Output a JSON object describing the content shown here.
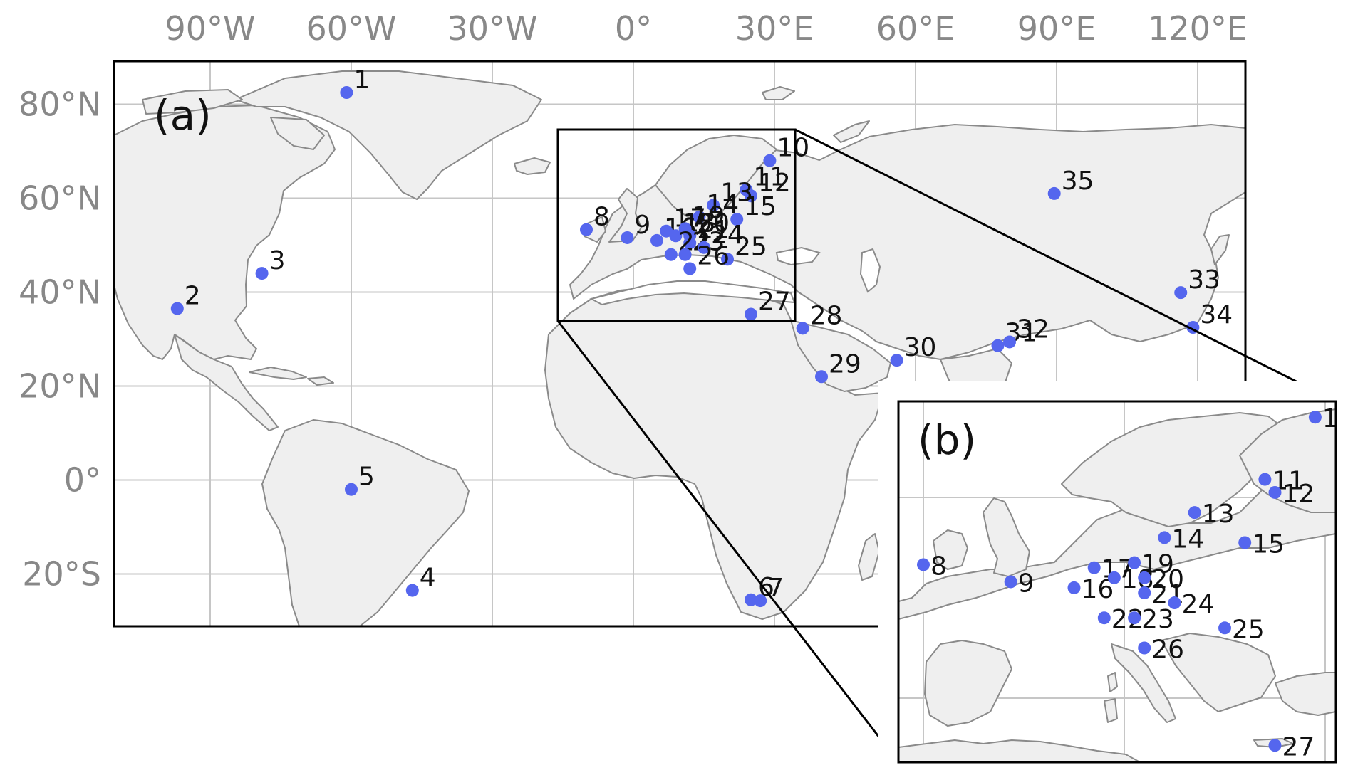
{
  "panel_a_label": "(a)",
  "panel_b_label": "(b)",
  "lon_labels": [
    "90°W",
    "60°W",
    "30°W",
    "0°",
    "30°E",
    "60°E",
    "90°E",
    "120°E"
  ],
  "lat_labels": [
    "80°N",
    "60°N",
    "40°N",
    "20°N",
    "0°",
    "20°S"
  ],
  "colors": {
    "marker": "#5566ee",
    "land": "#efefef",
    "coast": "#8a8a8a",
    "grid": "#c6c6c6"
  },
  "sites_main": [
    {
      "id": "1",
      "lon": -61,
      "lat": 82.5
    },
    {
      "id": "2",
      "lon": -97,
      "lat": 36.5
    },
    {
      "id": "3",
      "lon": -79,
      "lat": 44
    },
    {
      "id": "4",
      "lon": -47,
      "lat": -23.5
    },
    {
      "id": "5",
      "lon": -60,
      "lat": -2
    },
    {
      "id": "6",
      "lon": 25,
      "lat": -25.5
    },
    {
      "id": "7",
      "lon": 27,
      "lat": -25.7
    },
    {
      "id": "8",
      "lon": -10,
      "lat": 53.3
    },
    {
      "id": "9",
      "lon": -1.3,
      "lat": 51.6
    },
    {
      "id": "10",
      "lon": 29,
      "lat": 68
    },
    {
      "id": "11",
      "lon": 24,
      "lat": 61.8
    },
    {
      "id": "12",
      "lon": 25,
      "lat": 60.5
    },
    {
      "id": "13",
      "lon": 17,
      "lat": 58.5
    },
    {
      "id": "14",
      "lon": 14,
      "lat": 56
    },
    {
      "id": "15",
      "lon": 22,
      "lat": 55.5
    },
    {
      "id": "16",
      "lon": 5,
      "lat": 51
    },
    {
      "id": "17",
      "lon": 7,
      "lat": 53
    },
    {
      "id": "18",
      "lon": 9,
      "lat": 52
    },
    {
      "id": "19",
      "lon": 11,
      "lat": 53.5
    },
    {
      "id": "20",
      "lon": 12,
      "lat": 52
    },
    {
      "id": "21",
      "lon": 12,
      "lat": 50.5
    },
    {
      "id": "22",
      "lon": 8,
      "lat": 48
    },
    {
      "id": "23",
      "lon": 11,
      "lat": 48
    },
    {
      "id": "24",
      "lon": 15,
      "lat": 49.5
    },
    {
      "id": "25",
      "lon": 20,
      "lat": 47
    },
    {
      "id": "26",
      "lon": 12,
      "lat": 45
    },
    {
      "id": "27",
      "lon": 25,
      "lat": 35.3
    },
    {
      "id": "28",
      "lon": 36,
      "lat": 32.3
    },
    {
      "id": "29",
      "lon": 40,
      "lat": 22
    },
    {
      "id": "30",
      "lon": 56,
      "lat": 25.5
    },
    {
      "id": "31",
      "lon": 77.5,
      "lat": 28.6
    },
    {
      "id": "32",
      "lon": 80,
      "lat": 29.4
    },
    {
      "id": "33",
      "lon": 116.4,
      "lat": 39.9
    },
    {
      "id": "34",
      "lon": 119,
      "lat": 32.5
    },
    {
      "id": "35",
      "lon": 89.5,
      "lat": 61
    }
  ],
  "sites_inset": [
    {
      "id": "8",
      "lon": -10,
      "lat": 53.3
    },
    {
      "id": "9",
      "lon": -1.3,
      "lat": 51.6
    },
    {
      "id": "10",
      "lon": 29,
      "lat": 68
    },
    {
      "id": "11",
      "lon": 24,
      "lat": 61.8
    },
    {
      "id": "12",
      "lon": 25,
      "lat": 60.5
    },
    {
      "id": "13",
      "lon": 17,
      "lat": 58.5
    },
    {
      "id": "14",
      "lon": 14,
      "lat": 56
    },
    {
      "id": "15",
      "lon": 22,
      "lat": 55.5
    },
    {
      "id": "16",
      "lon": 5,
      "lat": 51
    },
    {
      "id": "17",
      "lon": 7,
      "lat": 53
    },
    {
      "id": "18",
      "lon": 9,
      "lat": 52
    },
    {
      "id": "19",
      "lon": 11,
      "lat": 53.5
    },
    {
      "id": "20",
      "lon": 12,
      "lat": 52
    },
    {
      "id": "21",
      "lon": 12,
      "lat": 50.5
    },
    {
      "id": "22",
      "lon": 8,
      "lat": 48
    },
    {
      "id": "23",
      "lon": 11,
      "lat": 48
    },
    {
      "id": "24",
      "lon": 15,
      "lat": 49.5
    },
    {
      "id": "25",
      "lon": 20,
      "lat": 47
    },
    {
      "id": "26",
      "lon": 12,
      "lat": 45
    },
    {
      "id": "27",
      "lon": 25,
      "lat": 35.3
    }
  ]
}
